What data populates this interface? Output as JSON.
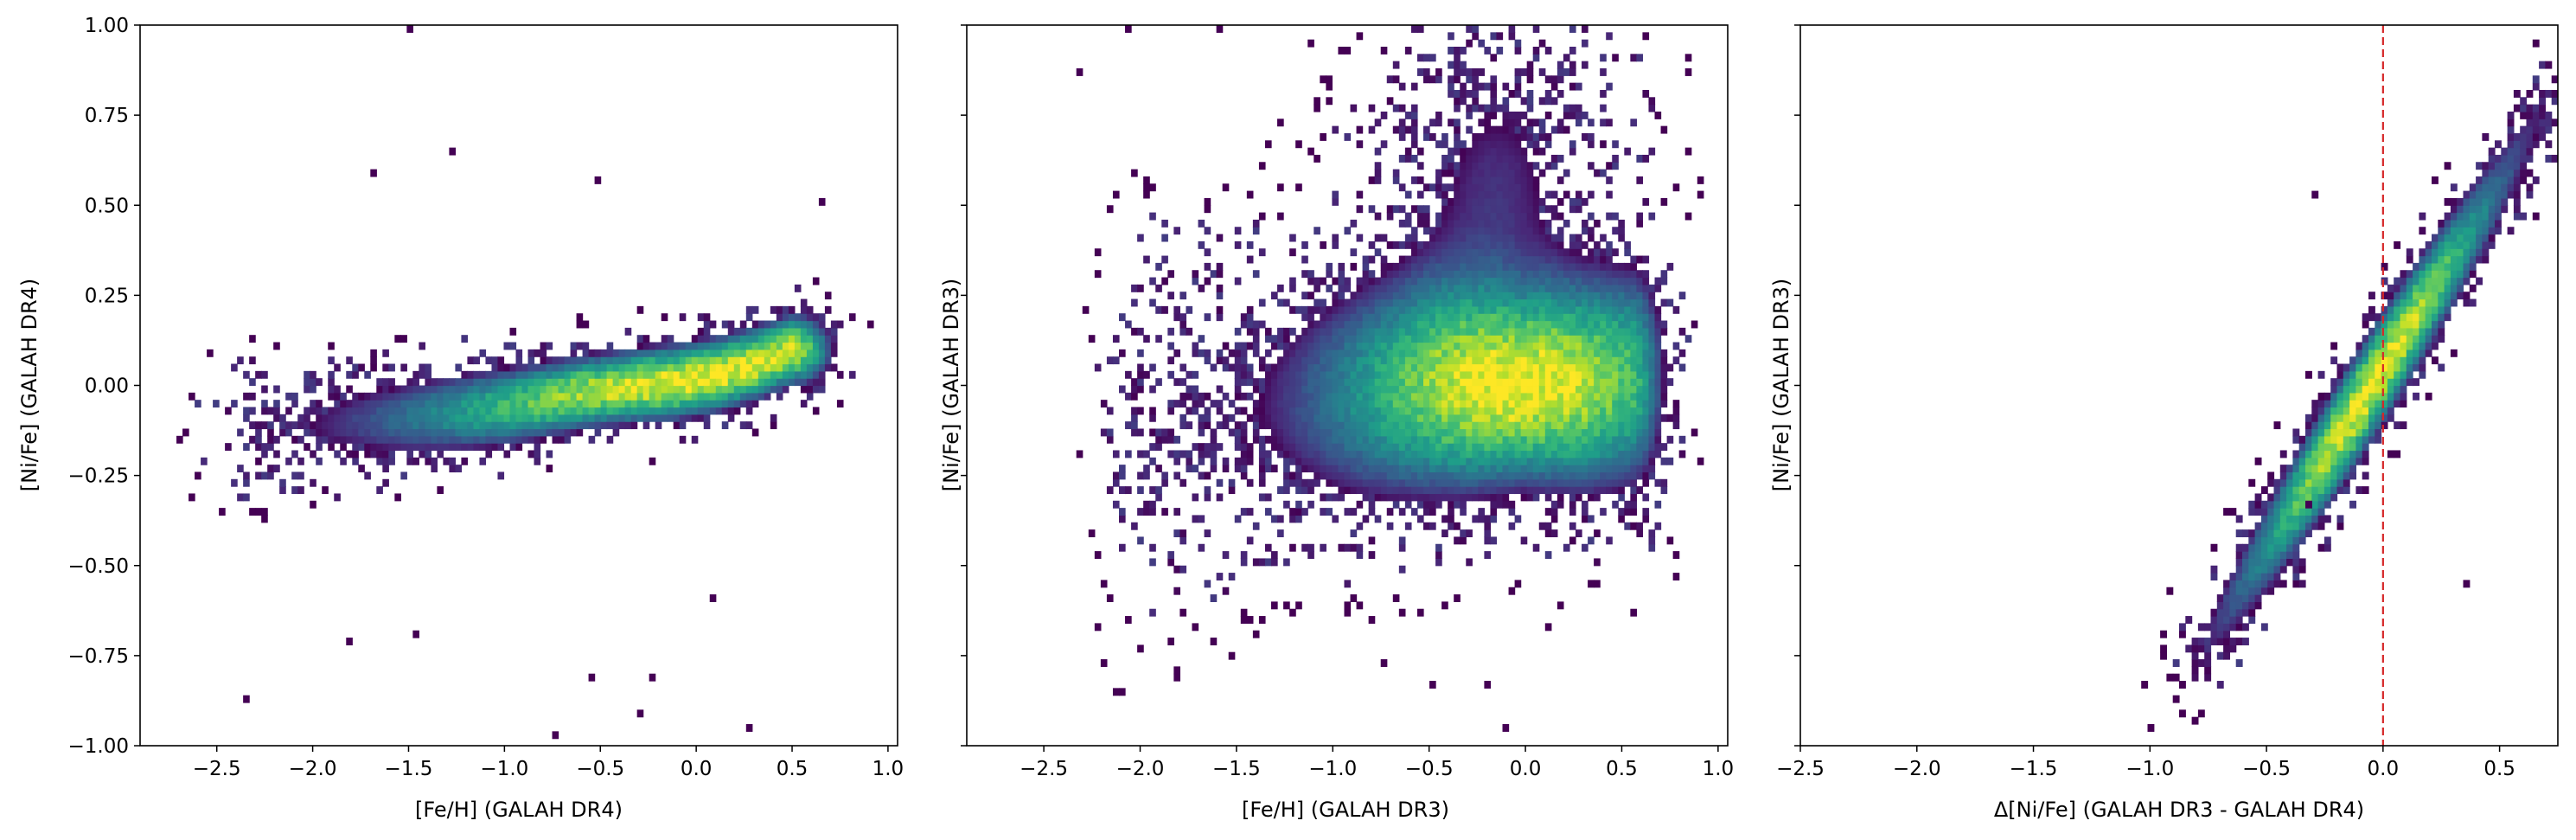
{
  "chart_data": [
    {
      "type": "heatmap",
      "xlabel": "[Fe/H] (GALAH DR4)",
      "ylabel": "[Ni/Fe] (GALAH DR4)",
      "xlim": [
        -2.9,
        1.05
      ],
      "ylim": [
        -1.0,
        1.0
      ],
      "xticks": [
        -2.5,
        -2.0,
        -1.5,
        -1.0,
        -0.5,
        0.0,
        0.5,
        1.0
      ],
      "xtick_labels": [
        "−2.5",
        "−2.0",
        "−1.5",
        "−1.0",
        "−0.5",
        "0.0",
        "0.5",
        "1.0"
      ],
      "yticks": [
        -1.0,
        -0.75,
        -0.5,
        -0.25,
        0.0,
        0.25,
        0.5,
        0.75,
        1.0
      ],
      "ytick_labels": [
        "−1.00",
        "−0.75",
        "−0.50",
        "−0.25",
        "0.00",
        "0.25",
        "0.50",
        "0.75",
        "1.00"
      ],
      "colormap": "viridis",
      "density_ridge": [
        [
          -2.3,
          -0.12
        ],
        [
          -2.0,
          -0.11
        ],
        [
          -1.5,
          -0.09
        ],
        [
          -1.0,
          -0.06
        ],
        [
          -0.6,
          -0.02
        ],
        [
          -0.3,
          0.0
        ],
        [
          -0.1,
          0.01
        ],
        [
          0.1,
          0.03
        ],
        [
          0.3,
          0.06
        ],
        [
          0.5,
          0.1
        ]
      ],
      "peak": [
        -0.05,
        -0.01
      ],
      "fe_range": [
        -2.45,
        0.7
      ],
      "outliers": [
        [
          -1.5,
          0.99
        ],
        [
          -1.68,
          0.58
        ],
        [
          -1.28,
          0.65
        ],
        [
          -0.52,
          0.56
        ],
        [
          0.67,
          0.5
        ],
        [
          -2.35,
          -0.87
        ],
        [
          -1.45,
          -0.7
        ],
        [
          -0.75,
          -0.97
        ],
        [
          0.1,
          -0.6
        ],
        [
          0.27,
          -0.95
        ],
        [
          -1.8,
          -0.71
        ],
        [
          -0.55,
          -0.8
        ],
        [
          -0.3,
          -0.9
        ],
        [
          -0.23,
          -0.8
        ]
      ]
    },
    {
      "type": "heatmap",
      "xlabel": "[Fe/H] (GALAH DR3)",
      "ylabel": "[Ni/Fe] (GALAH DR3)",
      "xlim": [
        -2.9,
        1.05
      ],
      "ylim": [
        -1.0,
        1.0
      ],
      "sharey": true,
      "xticks": [
        -2.5,
        -2.0,
        -1.5,
        -1.0,
        -0.5,
        0.0,
        0.5,
        1.0
      ],
      "xtick_labels": [
        "−2.5",
        "−2.0",
        "−1.5",
        "−1.0",
        "−0.5",
        "0.0",
        "0.5",
        "1.0"
      ],
      "yticks": [
        -1.0,
        -0.75,
        -0.5,
        -0.25,
        0.0,
        0.25,
        0.5,
        0.75,
        1.0
      ],
      "colormap": "viridis",
      "density_ridge": [
        [
          -2.0,
          -0.08
        ],
        [
          -1.5,
          -0.06
        ],
        [
          -1.0,
          -0.03
        ],
        [
          -0.5,
          0.0
        ],
        [
          -0.1,
          0.0
        ],
        [
          0.3,
          0.0
        ],
        [
          0.6,
          0.02
        ]
      ],
      "peak": [
        -0.02,
        -0.02
      ],
      "fe_range": [
        -2.1,
        0.75
      ],
      "outliers": [
        [
          -2.3,
          0.87
        ],
        [
          -2.05,
          0.99
        ],
        [
          -1.6,
          0.99
        ],
        [
          -1.1,
          0.95
        ],
        [
          -0.95,
          0.93
        ],
        [
          -0.1,
          -0.95
        ],
        [
          -0.72,
          -0.77
        ],
        [
          -0.48,
          -0.84
        ],
        [
          -0.2,
          -0.83
        ],
        [
          0.12,
          -0.67
        ]
      ]
    },
    {
      "type": "heatmap",
      "xlabel": "Δ[Ni/Fe] (GALAH DR3 - GALAH DR4)",
      "ylabel": "[Ni/Fe] (GALAH DR3)",
      "xlim": [
        -2.5,
        0.75
      ],
      "ylim": [
        -1.0,
        1.0
      ],
      "sharey": true,
      "xticks": [
        -2.5,
        -2.0,
        -1.5,
        -1.0,
        -0.5,
        0.0,
        0.5
      ],
      "xtick_labels": [
        "−2.5",
        "−2.0",
        "−1.5",
        "−1.0",
        "−0.5",
        "0.0",
        "0.5"
      ],
      "yticks": [
        -1.0,
        -0.75,
        -0.5,
        -0.25,
        0.0,
        0.25,
        0.5,
        0.75,
        1.0
      ],
      "colormap": "viridis",
      "reference_line": {
        "x": 0.0,
        "color": "#d62728",
        "style": "dashed"
      },
      "density_ridge": [
        [
          -0.75,
          -0.7
        ],
        [
          -0.5,
          -0.45
        ],
        [
          -0.25,
          -0.2
        ],
        [
          0.0,
          0.05
        ],
        [
          0.25,
          0.3
        ],
        [
          0.5,
          0.55
        ],
        [
          0.7,
          0.78
        ]
      ],
      "peak": [
        -0.05,
        -0.05
      ],
      "dx_range": [
        -0.95,
        0.75
      ],
      "outliers": [
        [
          -1.0,
          -0.95
        ],
        [
          -1.03,
          -0.83
        ],
        [
          -0.9,
          -0.8
        ],
        [
          -0.32,
          -0.32
        ],
        [
          -0.28,
          0.53
        ],
        [
          0.35,
          -0.55
        ]
      ]
    }
  ]
}
